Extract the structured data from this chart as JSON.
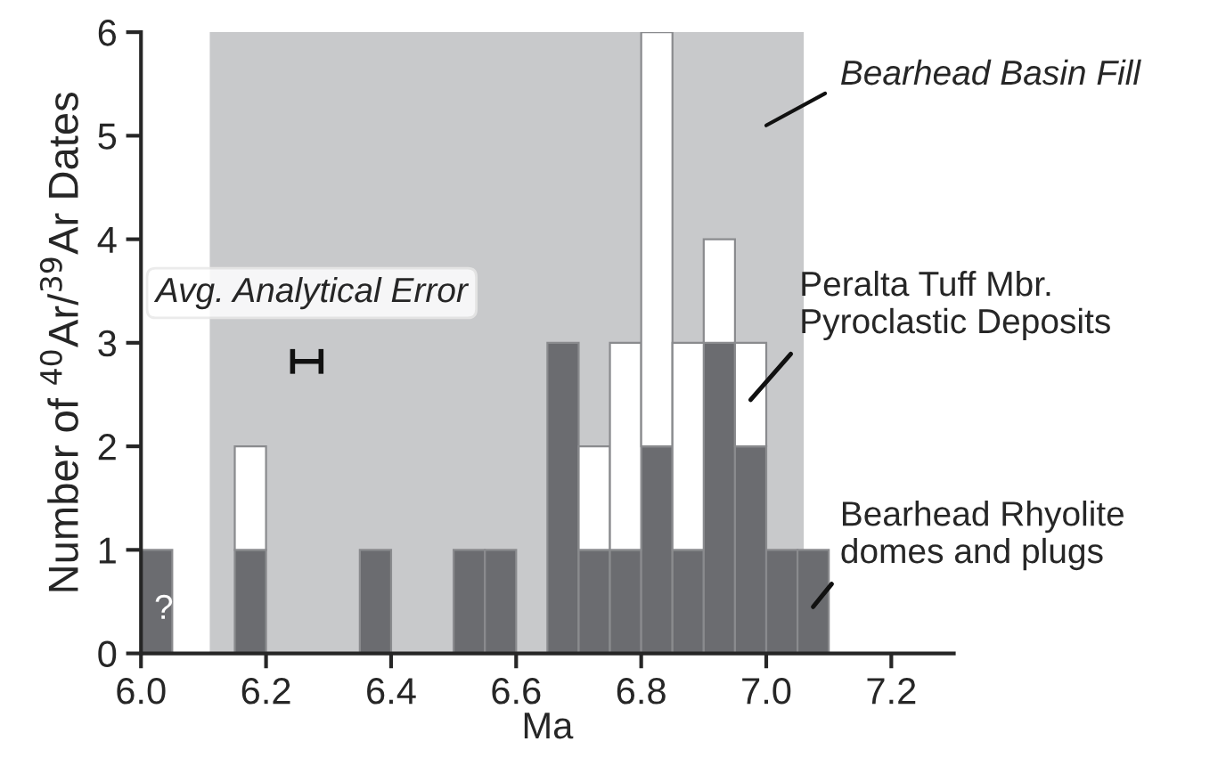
{
  "chart_data": {
    "type": "bar",
    "xlabel": "Ma",
    "ylabel": "Number of $^{40}$Ar/$^{39}$Ar Dates",
    "x": [
      6.025,
      6.175,
      6.375,
      6.525,
      6.575,
      6.675,
      6.725,
      6.775,
      6.825,
      6.875,
      6.925,
      6.975,
      7.025,
      7.075
    ],
    "stacked": true,
    "series": [
      {
        "name": "Bearhead Rhyolite domes and plugs",
        "color": "#6b6c70",
        "values": [
          1,
          1,
          1,
          1,
          1,
          3,
          1,
          1,
          2,
          1,
          3,
          2,
          1,
          1
        ]
      },
      {
        "name": "Peralta Tuff Mbr. Pyroclastic Deposits",
        "color": "#ffffff",
        "values": [
          0,
          1,
          0,
          0,
          0,
          0,
          1,
          2,
          4,
          2,
          1,
          1,
          0,
          0
        ]
      }
    ],
    "bands": [
      {
        "axis": "x",
        "from": 6.11,
        "to": 7.06,
        "label": "Bearhead Basin Fill",
        "color": "#c8c9cb"
      }
    ],
    "annotations": [
      "Avg. Analytical Error",
      "?"
    ],
    "xlim": [
      6.0,
      7.3
    ],
    "xticks": [
      {
        "value": 6.0,
        "label": "6.0"
      },
      {
        "value": 6.2,
        "label": "6.2"
      },
      {
        "value": 6.4,
        "label": "6.4"
      },
      {
        "value": 6.6,
        "label": "6.6"
      },
      {
        "value": 6.8,
        "label": "6.8"
      },
      {
        "value": 7.0,
        "label": "7.0"
      },
      {
        "value": 7.2,
        "label": "7.2"
      }
    ],
    "ylim": [
      0,
      6
    ],
    "yticks": [
      0,
      1,
      2,
      3,
      4,
      5,
      6
    ],
    "grid": false,
    "legend": false
  }
}
